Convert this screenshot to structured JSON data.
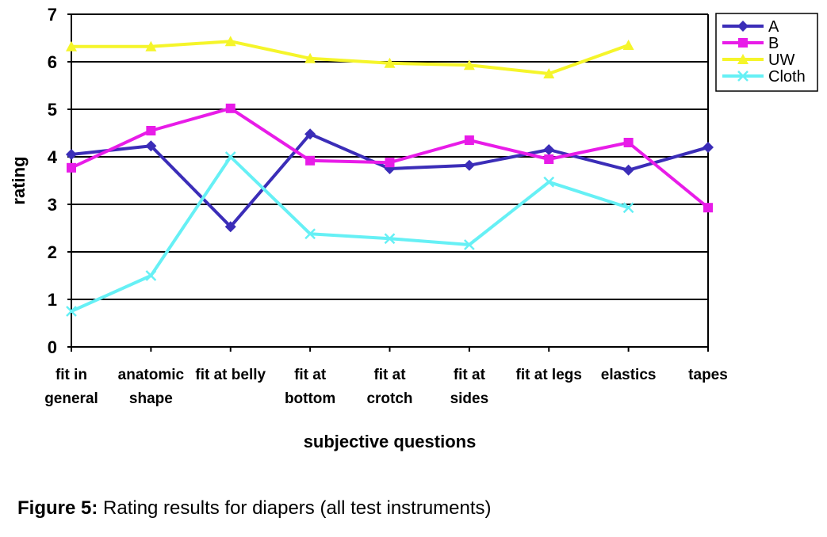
{
  "chart_data": {
    "type": "line",
    "categories": [
      [
        "fit in",
        "general"
      ],
      [
        "anatomic",
        "shape"
      ],
      [
        "fit at belly"
      ],
      [
        "fit at",
        "bottom"
      ],
      [
        "fit at",
        "crotch"
      ],
      [
        "fit at",
        "sides"
      ],
      [
        "fit at legs"
      ],
      [
        "elastics"
      ],
      [
        "tapes"
      ]
    ],
    "xlabel": "subjective questions",
    "ylabel": "rating",
    "ylim": [
      0,
      7
    ],
    "yticks": [
      0,
      1,
      2,
      3,
      4,
      5,
      6,
      7
    ],
    "grid": "horizontal",
    "legend_position": "top-right",
    "series": [
      {
        "name": "A",
        "color": "#3B2DB8",
        "marker": "diamond",
        "values": [
          4.05,
          4.23,
          2.53,
          4.48,
          3.75,
          3.82,
          4.15,
          3.72,
          4.2
        ]
      },
      {
        "name": "B",
        "color": "#E81CE8",
        "marker": "square",
        "values": [
          3.77,
          4.55,
          5.02,
          3.92,
          3.88,
          4.35,
          3.95,
          4.3,
          2.93
        ]
      },
      {
        "name": "UW",
        "color": "#F5F52A",
        "marker": "triangle",
        "values": [
          6.32,
          6.32,
          6.43,
          6.07,
          5.97,
          5.93,
          5.75,
          6.35,
          null
        ]
      },
      {
        "name": "Cloth",
        "color": "#66F0F5",
        "marker": "x",
        "values": [
          0.75,
          1.5,
          4.0,
          2.38,
          2.28,
          2.15,
          3.47,
          2.93,
          null
        ]
      }
    ]
  },
  "caption": {
    "label": "Figure 5:",
    "text": " Rating results for diapers (all test instruments)"
  }
}
